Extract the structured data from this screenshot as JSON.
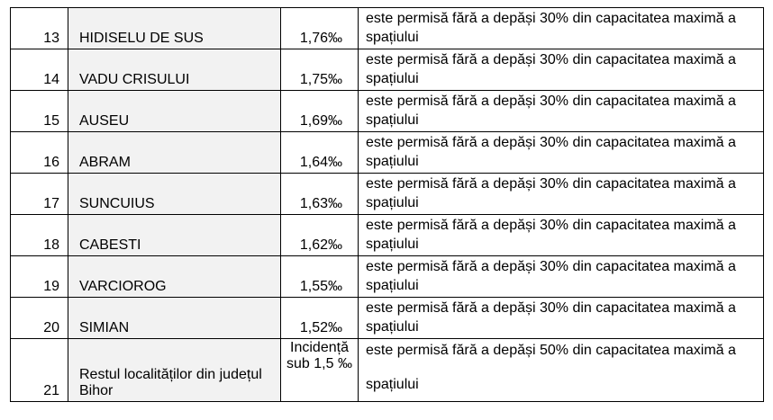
{
  "table": {
    "rows": [
      {
        "num": "13",
        "name": "HIDISELU DE SUS",
        "value": "1,76‰",
        "note": "este permisă fără a depăși 30% din capacitatea maximă a spațiului"
      },
      {
        "num": "14",
        "name": "VADU CRISULUI",
        "value": "1,75‰",
        "note": "este permisă fără a depăși 30% din capacitatea maximă a spațiului"
      },
      {
        "num": "15",
        "name": "AUSEU",
        "value": "1,69‰",
        "note": "este permisă fără a depăși 30% din capacitatea maximă a spațiului"
      },
      {
        "num": "16",
        "name": "ABRAM",
        "value": "1,64‰",
        "note": "este permisă fără a depăși 30% din capacitatea maximă a spațiului"
      },
      {
        "num": "17",
        "name": "SUNCUIUS",
        "value": "1,63‰",
        "note": "este permisă fără a depăși 30% din capacitatea maximă a spațiului"
      },
      {
        "num": "18",
        "name": "CABESTI",
        "value": "1,62‰",
        "note": "este permisă fără a depăși 30% din capacitatea maximă a spațiului"
      },
      {
        "num": "19",
        "name": "VARCIOROG",
        "value": "1,55‰",
        "note": "este permisă fără a depăși 30% din capacitatea maximă a spațiului"
      },
      {
        "num": "20",
        "name": "SIMIAN",
        "value": "1,52‰",
        "note": "este permisă fără a depăși 30% din capacitatea maximă a spațiului"
      }
    ],
    "last_row": {
      "num": "21",
      "name": "Restul localităților din județul Bihor",
      "value": "Incidență sub 1,5 ‰",
      "note_line1": "este permisă fără a depăși 50% din capacitatea maximă a",
      "note_line2": "spațiului"
    }
  }
}
